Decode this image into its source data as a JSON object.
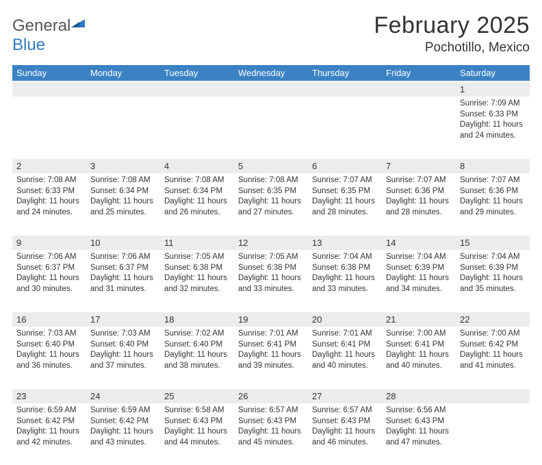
{
  "logo": {
    "part1": "General",
    "part2": "Blue"
  },
  "title": "February 2025",
  "location": "Pochotillo, Mexico",
  "day_headers": [
    "Sunday",
    "Monday",
    "Tuesday",
    "Wednesday",
    "Thursday",
    "Friday",
    "Saturday"
  ],
  "colors": {
    "header_bg": "#3b82c4",
    "header_fg": "#ffffff",
    "daynum_bg": "#ececec",
    "text": "#333333",
    "logo_gray": "#555555",
    "logo_blue": "#2f7ac0",
    "page_bg": "#ffffff"
  },
  "typography": {
    "title_fontsize": 34,
    "location_fontsize": 19,
    "header_fontsize": 13,
    "daynum_fontsize": 13,
    "cell_fontsize": 11.5,
    "font_family": "Arial"
  },
  "weeks": [
    {
      "daynums": [
        "",
        "",
        "",
        "",
        "",
        "",
        "1"
      ],
      "cells": [
        null,
        null,
        null,
        null,
        null,
        null,
        {
          "sunrise": "Sunrise: 7:09 AM",
          "sunset": "Sunset: 6:33 PM",
          "daylight": "Daylight: 11 hours and 24 minutes."
        }
      ]
    },
    {
      "daynums": [
        "2",
        "3",
        "4",
        "5",
        "6",
        "7",
        "8"
      ],
      "cells": [
        {
          "sunrise": "Sunrise: 7:08 AM",
          "sunset": "Sunset: 6:33 PM",
          "daylight": "Daylight: 11 hours and 24 minutes."
        },
        {
          "sunrise": "Sunrise: 7:08 AM",
          "sunset": "Sunset: 6:34 PM",
          "daylight": "Daylight: 11 hours and 25 minutes."
        },
        {
          "sunrise": "Sunrise: 7:08 AM",
          "sunset": "Sunset: 6:34 PM",
          "daylight": "Daylight: 11 hours and 26 minutes."
        },
        {
          "sunrise": "Sunrise: 7:08 AM",
          "sunset": "Sunset: 6:35 PM",
          "daylight": "Daylight: 11 hours and 27 minutes."
        },
        {
          "sunrise": "Sunrise: 7:07 AM",
          "sunset": "Sunset: 6:35 PM",
          "daylight": "Daylight: 11 hours and 28 minutes."
        },
        {
          "sunrise": "Sunrise: 7:07 AM",
          "sunset": "Sunset: 6:36 PM",
          "daylight": "Daylight: 11 hours and 28 minutes."
        },
        {
          "sunrise": "Sunrise: 7:07 AM",
          "sunset": "Sunset: 6:36 PM",
          "daylight": "Daylight: 11 hours and 29 minutes."
        }
      ]
    },
    {
      "daynums": [
        "9",
        "10",
        "11",
        "12",
        "13",
        "14",
        "15"
      ],
      "cells": [
        {
          "sunrise": "Sunrise: 7:06 AM",
          "sunset": "Sunset: 6:37 PM",
          "daylight": "Daylight: 11 hours and 30 minutes."
        },
        {
          "sunrise": "Sunrise: 7:06 AM",
          "sunset": "Sunset: 6:37 PM",
          "daylight": "Daylight: 11 hours and 31 minutes."
        },
        {
          "sunrise": "Sunrise: 7:05 AM",
          "sunset": "Sunset: 6:38 PM",
          "daylight": "Daylight: 11 hours and 32 minutes."
        },
        {
          "sunrise": "Sunrise: 7:05 AM",
          "sunset": "Sunset: 6:38 PM",
          "daylight": "Daylight: 11 hours and 33 minutes."
        },
        {
          "sunrise": "Sunrise: 7:04 AM",
          "sunset": "Sunset: 6:38 PM",
          "daylight": "Daylight: 11 hours and 33 minutes."
        },
        {
          "sunrise": "Sunrise: 7:04 AM",
          "sunset": "Sunset: 6:39 PM",
          "daylight": "Daylight: 11 hours and 34 minutes."
        },
        {
          "sunrise": "Sunrise: 7:04 AM",
          "sunset": "Sunset: 6:39 PM",
          "daylight": "Daylight: 11 hours and 35 minutes."
        }
      ]
    },
    {
      "daynums": [
        "16",
        "17",
        "18",
        "19",
        "20",
        "21",
        "22"
      ],
      "cells": [
        {
          "sunrise": "Sunrise: 7:03 AM",
          "sunset": "Sunset: 6:40 PM",
          "daylight": "Daylight: 11 hours and 36 minutes."
        },
        {
          "sunrise": "Sunrise: 7:03 AM",
          "sunset": "Sunset: 6:40 PM",
          "daylight": "Daylight: 11 hours and 37 minutes."
        },
        {
          "sunrise": "Sunrise: 7:02 AM",
          "sunset": "Sunset: 6:40 PM",
          "daylight": "Daylight: 11 hours and 38 minutes."
        },
        {
          "sunrise": "Sunrise: 7:01 AM",
          "sunset": "Sunset: 6:41 PM",
          "daylight": "Daylight: 11 hours and 39 minutes."
        },
        {
          "sunrise": "Sunrise: 7:01 AM",
          "sunset": "Sunset: 6:41 PM",
          "daylight": "Daylight: 11 hours and 40 minutes."
        },
        {
          "sunrise": "Sunrise: 7:00 AM",
          "sunset": "Sunset: 6:41 PM",
          "daylight": "Daylight: 11 hours and 40 minutes."
        },
        {
          "sunrise": "Sunrise: 7:00 AM",
          "sunset": "Sunset: 6:42 PM",
          "daylight": "Daylight: 11 hours and 41 minutes."
        }
      ]
    },
    {
      "daynums": [
        "23",
        "24",
        "25",
        "26",
        "27",
        "28",
        ""
      ],
      "cells": [
        {
          "sunrise": "Sunrise: 6:59 AM",
          "sunset": "Sunset: 6:42 PM",
          "daylight": "Daylight: 11 hours and 42 minutes."
        },
        {
          "sunrise": "Sunrise: 6:59 AM",
          "sunset": "Sunset: 6:42 PM",
          "daylight": "Daylight: 11 hours and 43 minutes."
        },
        {
          "sunrise": "Sunrise: 6:58 AM",
          "sunset": "Sunset: 6:43 PM",
          "daylight": "Daylight: 11 hours and 44 minutes."
        },
        {
          "sunrise": "Sunrise: 6:57 AM",
          "sunset": "Sunset: 6:43 PM",
          "daylight": "Daylight: 11 hours and 45 minutes."
        },
        {
          "sunrise": "Sunrise: 6:57 AM",
          "sunset": "Sunset: 6:43 PM",
          "daylight": "Daylight: 11 hours and 46 minutes."
        },
        {
          "sunrise": "Sunrise: 6:56 AM",
          "sunset": "Sunset: 6:43 PM",
          "daylight": "Daylight: 11 hours and 47 minutes."
        },
        null
      ]
    }
  ]
}
